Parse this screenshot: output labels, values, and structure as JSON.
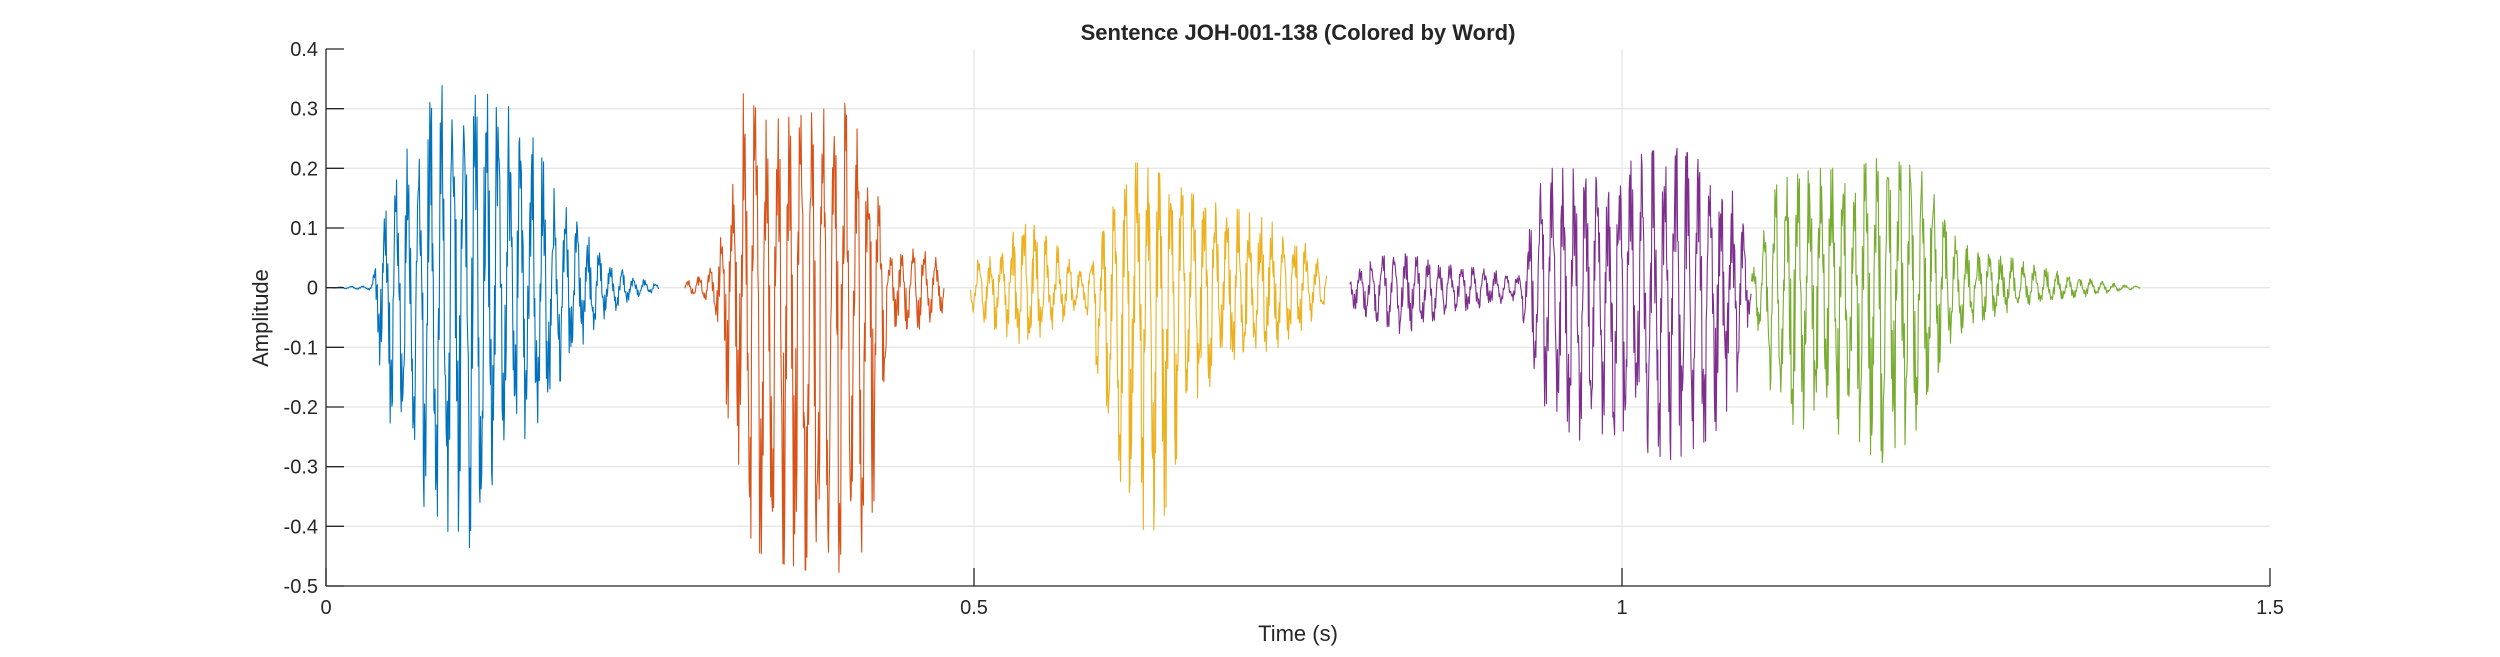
{
  "chart_data": {
    "type": "line",
    "title": "Sentence JOH-001-138 (Colored by Word)",
    "xlabel": "Time (s)",
    "ylabel": "Amplitude",
    "xlim": [
      0,
      1.5
    ],
    "ylim": [
      -0.5,
      0.4
    ],
    "xticks": [
      0,
      0.5,
      1,
      1.5
    ],
    "xtick_labels": [
      "0",
      "0.5",
      "1",
      "1.5"
    ],
    "yticks": [
      0.4,
      0.3,
      0.2,
      0.1,
      0,
      -0.1,
      -0.2,
      -0.3,
      -0.4,
      -0.5
    ],
    "ytick_labels": [
      "0.4",
      "0.3",
      "0.2",
      "0.1",
      "0",
      "-0.1",
      "-0.2",
      "-0.3",
      "-0.4",
      "-0.5"
    ],
    "grid": true,
    "series": [
      {
        "color": "#0072BD",
        "start": 0.0,
        "end": 0.257,
        "envelope": [
          [
            0.0,
            0.0
          ],
          [
            0.035,
            0.004
          ],
          [
            0.045,
            0.12
          ],
          [
            0.07,
            0.28
          ],
          [
            0.09,
            0.34
          ],
          [
            0.11,
            0.32
          ],
          [
            0.13,
            0.33
          ],
          [
            0.15,
            0.3
          ],
          [
            0.17,
            0.2
          ],
          [
            0.19,
            0.13
          ],
          [
            0.21,
            0.06
          ],
          [
            0.235,
            0.02
          ],
          [
            0.257,
            0.005
          ]
        ],
        "neg_envelope": [
          [
            0.0,
            0.0
          ],
          [
            0.035,
            0.004
          ],
          [
            0.045,
            0.2
          ],
          [
            0.07,
            0.35
          ],
          [
            0.09,
            0.46
          ],
          [
            0.11,
            0.44
          ],
          [
            0.13,
            0.32
          ],
          [
            0.15,
            0.28
          ],
          [
            0.17,
            0.2
          ],
          [
            0.19,
            0.12
          ],
          [
            0.21,
            0.06
          ],
          [
            0.235,
            0.02
          ],
          [
            0.257,
            0.005
          ]
        ]
      },
      {
        "color": "#D95319",
        "start": 0.277,
        "end": 0.477,
        "envelope": [
          [
            0.277,
            0.01
          ],
          [
            0.29,
            0.02
          ],
          [
            0.3,
            0.04
          ],
          [
            0.315,
            0.2
          ],
          [
            0.32,
            0.33
          ],
          [
            0.34,
            0.28
          ],
          [
            0.37,
            0.29
          ],
          [
            0.4,
            0.31
          ],
          [
            0.42,
            0.22
          ],
          [
            0.435,
            0.05
          ],
          [
            0.45,
            0.07
          ],
          [
            0.465,
            0.06
          ],
          [
            0.477,
            0.04
          ]
        ],
        "neg_envelope": [
          [
            0.277,
            0.01
          ],
          [
            0.29,
            0.02
          ],
          [
            0.3,
            0.04
          ],
          [
            0.315,
            0.3
          ],
          [
            0.33,
            0.44
          ],
          [
            0.36,
            0.47
          ],
          [
            0.39,
            0.48
          ],
          [
            0.41,
            0.47
          ],
          [
            0.425,
            0.35
          ],
          [
            0.435,
            0.06
          ],
          [
            0.45,
            0.08
          ],
          [
            0.465,
            0.06
          ],
          [
            0.477,
            0.04
          ]
        ]
      },
      {
        "color": "#EDB120",
        "start": 0.497,
        "end": 0.772,
        "envelope": [
          [
            0.497,
            0.04
          ],
          [
            0.515,
            0.06
          ],
          [
            0.54,
            0.12
          ],
          [
            0.56,
            0.08
          ],
          [
            0.585,
            0.02
          ],
          [
            0.61,
            0.15
          ],
          [
            0.625,
            0.21
          ],
          [
            0.645,
            0.19
          ],
          [
            0.665,
            0.16
          ],
          [
            0.69,
            0.14
          ],
          [
            0.72,
            0.12
          ],
          [
            0.75,
            0.09
          ],
          [
            0.772,
            0.03
          ]
        ],
        "neg_envelope": [
          [
            0.497,
            0.04
          ],
          [
            0.515,
            0.07
          ],
          [
            0.54,
            0.1
          ],
          [
            0.56,
            0.07
          ],
          [
            0.585,
            0.03
          ],
          [
            0.61,
            0.3
          ],
          [
            0.625,
            0.42
          ],
          [
            0.645,
            0.4
          ],
          [
            0.665,
            0.2
          ],
          [
            0.69,
            0.15
          ],
          [
            0.72,
            0.12
          ],
          [
            0.75,
            0.08
          ],
          [
            0.772,
            0.03
          ]
        ]
      },
      {
        "color": "#7E2F8E",
        "start": 0.79,
        "end": 1.1,
        "envelope": [
          [
            0.79,
            0.02
          ],
          [
            0.81,
            0.05
          ],
          [
            0.83,
            0.06
          ],
          [
            0.86,
            0.04
          ],
          [
            0.9,
            0.03
          ],
          [
            0.92,
            0.02
          ],
          [
            0.94,
            0.2
          ],
          [
            0.97,
            0.2
          ],
          [
            0.99,
            0.17
          ],
          [
            1.01,
            0.22
          ],
          [
            1.04,
            0.24
          ],
          [
            1.07,
            0.2
          ],
          [
            1.09,
            0.15
          ],
          [
            1.1,
            0.02
          ]
        ],
        "neg_envelope": [
          [
            0.79,
            0.03
          ],
          [
            0.81,
            0.06
          ],
          [
            0.83,
            0.08
          ],
          [
            0.86,
            0.05
          ],
          [
            0.9,
            0.03
          ],
          [
            0.92,
            0.02
          ],
          [
            0.94,
            0.21
          ],
          [
            0.97,
            0.26
          ],
          [
            0.99,
            0.24
          ],
          [
            1.01,
            0.27
          ],
          [
            1.04,
            0.29
          ],
          [
            1.07,
            0.25
          ],
          [
            1.09,
            0.17
          ],
          [
            1.1,
            0.02
          ]
        ]
      },
      {
        "color": "#77AC30",
        "start": 1.1,
        "end": 1.4,
        "envelope": [
          [
            1.1,
            0.02
          ],
          [
            1.12,
            0.18
          ],
          [
            1.15,
            0.2
          ],
          [
            1.18,
            0.2
          ],
          [
            1.2,
            0.22
          ],
          [
            1.23,
            0.2
          ],
          [
            1.25,
            0.12
          ],
          [
            1.27,
            0.06
          ],
          [
            1.3,
            0.05
          ],
          [
            1.33,
            0.03
          ],
          [
            1.36,
            0.015
          ],
          [
            1.385,
            0.005
          ],
          [
            1.4,
            0.002
          ]
        ],
        "neg_envelope": [
          [
            1.1,
            0.02
          ],
          [
            1.12,
            0.23
          ],
          [
            1.15,
            0.24
          ],
          [
            1.18,
            0.25
          ],
          [
            1.2,
            0.3
          ],
          [
            1.23,
            0.24
          ],
          [
            1.25,
            0.1
          ],
          [
            1.27,
            0.06
          ],
          [
            1.3,
            0.04
          ],
          [
            1.33,
            0.02
          ],
          [
            1.36,
            0.015
          ],
          [
            1.385,
            0.005
          ],
          [
            1.4,
            0.002
          ]
        ]
      }
    ]
  }
}
